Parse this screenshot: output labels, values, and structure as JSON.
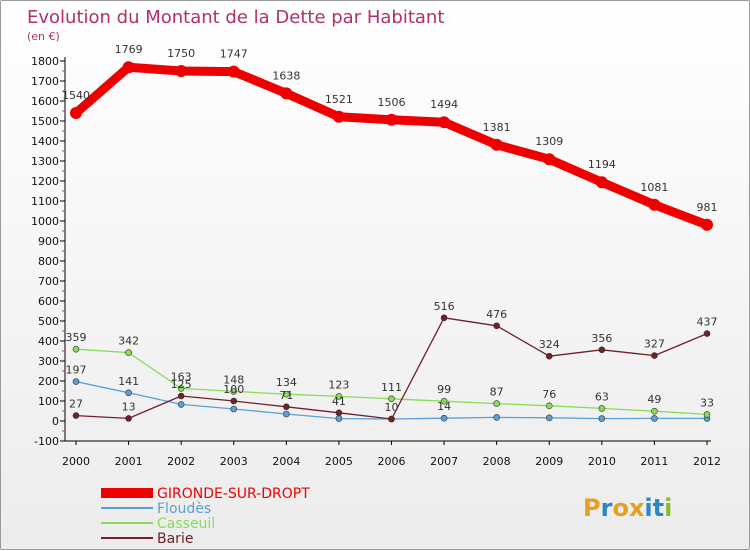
{
  "chart_data": {
    "type": "line",
    "title": "Evolution du Montant de la Dette par Habitant",
    "subtitle": "(en €)",
    "x": [
      "2000",
      "2001",
      "2002",
      "2003",
      "2004",
      "2005",
      "2006",
      "2007",
      "2008",
      "2009",
      "2010",
      "2011",
      "2012"
    ],
    "ylim": [
      -100,
      1800
    ],
    "yticks": [
      -100,
      0,
      100,
      200,
      300,
      400,
      500,
      600,
      700,
      800,
      900,
      1000,
      1100,
      1200,
      1300,
      1400,
      1500,
      1600,
      1700,
      1800
    ],
    "grid": false,
    "legend_position": "bottom-left",
    "series": [
      {
        "name": "GIRONDE-SUR-DROPT",
        "color": "#ee0000",
        "thick": true,
        "values": [
          1540,
          1769,
          1750,
          1747,
          1638,
          1521,
          1506,
          1494,
          1381,
          1309,
          1194,
          1081,
          981
        ]
      },
      {
        "name": "Floudès",
        "color": "#5b9fd6",
        "values": [
          197,
          141,
          83,
          60,
          35,
          12,
          10,
          14,
          18,
          16,
          12,
          13,
          13
        ]
      },
      {
        "name": "Casseuil",
        "color": "#88dd55",
        "values": [
          359,
          342,
          163,
          148,
          134,
          123,
          111,
          99,
          87,
          76,
          63,
          49,
          33
        ]
      },
      {
        "name": "Barie",
        "color": "#702028",
        "values": [
          27,
          13,
          125,
          100,
          71,
          41,
          10,
          516,
          476,
          324,
          356,
          327,
          437
        ]
      }
    ],
    "labels": {
      "GIRONDE-SUR-DROPT": [
        "1540",
        "1769",
        "1750",
        "1747",
        "1638",
        "1521",
        "1506",
        "1494",
        "1381",
        "1309",
        "1194",
        "1081",
        "981"
      ],
      "Floudès": [
        "197",
        "141",
        "",
        "",
        "",
        "",
        "",
        "14",
        "",
        "",
        "",
        "",
        ""
      ],
      "Casseuil": [
        "359",
        "342",
        "163",
        "148",
        "134",
        "123",
        "111",
        "99",
        "87",
        "76",
        "63",
        "49",
        "33"
      ],
      "Barie": [
        "27",
        "13",
        "125",
        "100",
        "71",
        "41",
        "10",
        "516",
        "476",
        "324",
        "356",
        "327",
        "437"
      ]
    }
  },
  "logo": {
    "text": "Proxiti"
  }
}
